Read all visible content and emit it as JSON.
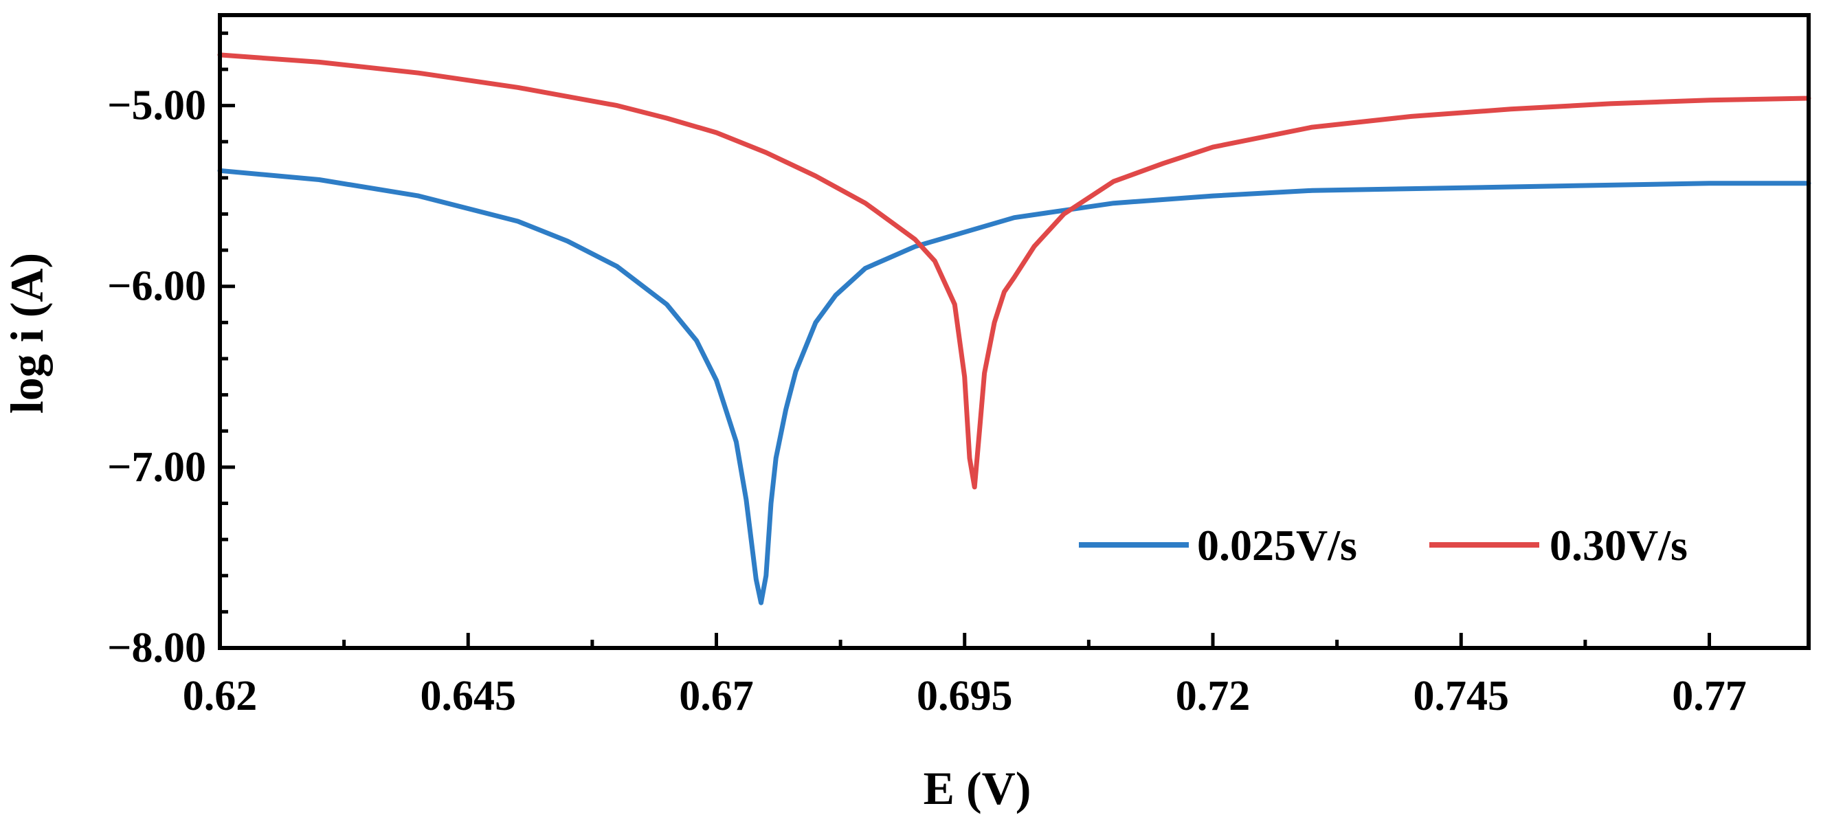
{
  "chart_data": {
    "type": "line",
    "title": "",
    "xlabel": "E (V)",
    "ylabel": "log i (A)",
    "xlim": [
      0.62,
      0.78
    ],
    "ylim": [
      -8.0,
      -4.5
    ],
    "x_ticks": [
      0.62,
      0.645,
      0.67,
      0.695,
      0.72,
      0.745,
      0.77
    ],
    "x_tick_labels": [
      "0.62",
      "0.645",
      "0.67",
      "0.695",
      "0.72",
      "0.745",
      "0.77"
    ],
    "y_ticks": [
      -8.0,
      -7.0,
      -6.0,
      -5.0
    ],
    "y_tick_labels": [
      "−8.00",
      "−7.00",
      "−6.00",
      "−5.00"
    ],
    "grid": false,
    "legend_position": "bottom-right",
    "series": [
      {
        "name": "0.025V/s",
        "color": "#2E7DC6",
        "x": [
          0.62,
          0.63,
          0.64,
          0.65,
          0.655,
          0.66,
          0.665,
          0.668,
          0.67,
          0.672,
          0.673,
          0.674,
          0.6745,
          0.675,
          0.6755,
          0.676,
          0.677,
          0.678,
          0.68,
          0.682,
          0.685,
          0.69,
          0.695,
          0.7,
          0.705,
          0.71,
          0.72,
          0.73,
          0.74,
          0.75,
          0.76,
          0.77,
          0.78
        ],
        "values": [
          -5.36,
          -5.41,
          -5.5,
          -5.64,
          -5.75,
          -5.89,
          -6.1,
          -6.3,
          -6.52,
          -6.86,
          -7.18,
          -7.62,
          -7.75,
          -7.6,
          -7.2,
          -6.95,
          -6.68,
          -6.47,
          -6.2,
          -6.05,
          -5.9,
          -5.78,
          -5.7,
          -5.62,
          -5.58,
          -5.54,
          -5.5,
          -5.47,
          -5.46,
          -5.45,
          -5.44,
          -5.43,
          -5.43
        ]
      },
      {
        "name": "0.30V/s",
        "color": "#E04848",
        "x": [
          0.62,
          0.63,
          0.64,
          0.65,
          0.66,
          0.665,
          0.67,
          0.675,
          0.68,
          0.685,
          0.688,
          0.69,
          0.692,
          0.694,
          0.695,
          0.6955,
          0.696,
          0.6965,
          0.697,
          0.698,
          0.699,
          0.7,
          0.702,
          0.705,
          0.71,
          0.715,
          0.72,
          0.73,
          0.74,
          0.75,
          0.76,
          0.77,
          0.78
        ],
        "values": [
          -4.72,
          -4.76,
          -4.82,
          -4.9,
          -5.0,
          -5.07,
          -5.15,
          -5.26,
          -5.39,
          -5.54,
          -5.66,
          -5.74,
          -5.86,
          -6.1,
          -6.5,
          -6.95,
          -7.11,
          -6.8,
          -6.48,
          -6.2,
          -6.03,
          -5.95,
          -5.78,
          -5.6,
          -5.42,
          -5.32,
          -5.23,
          -5.12,
          -5.06,
          -5.02,
          -4.99,
          -4.97,
          -4.96
        ]
      }
    ]
  }
}
